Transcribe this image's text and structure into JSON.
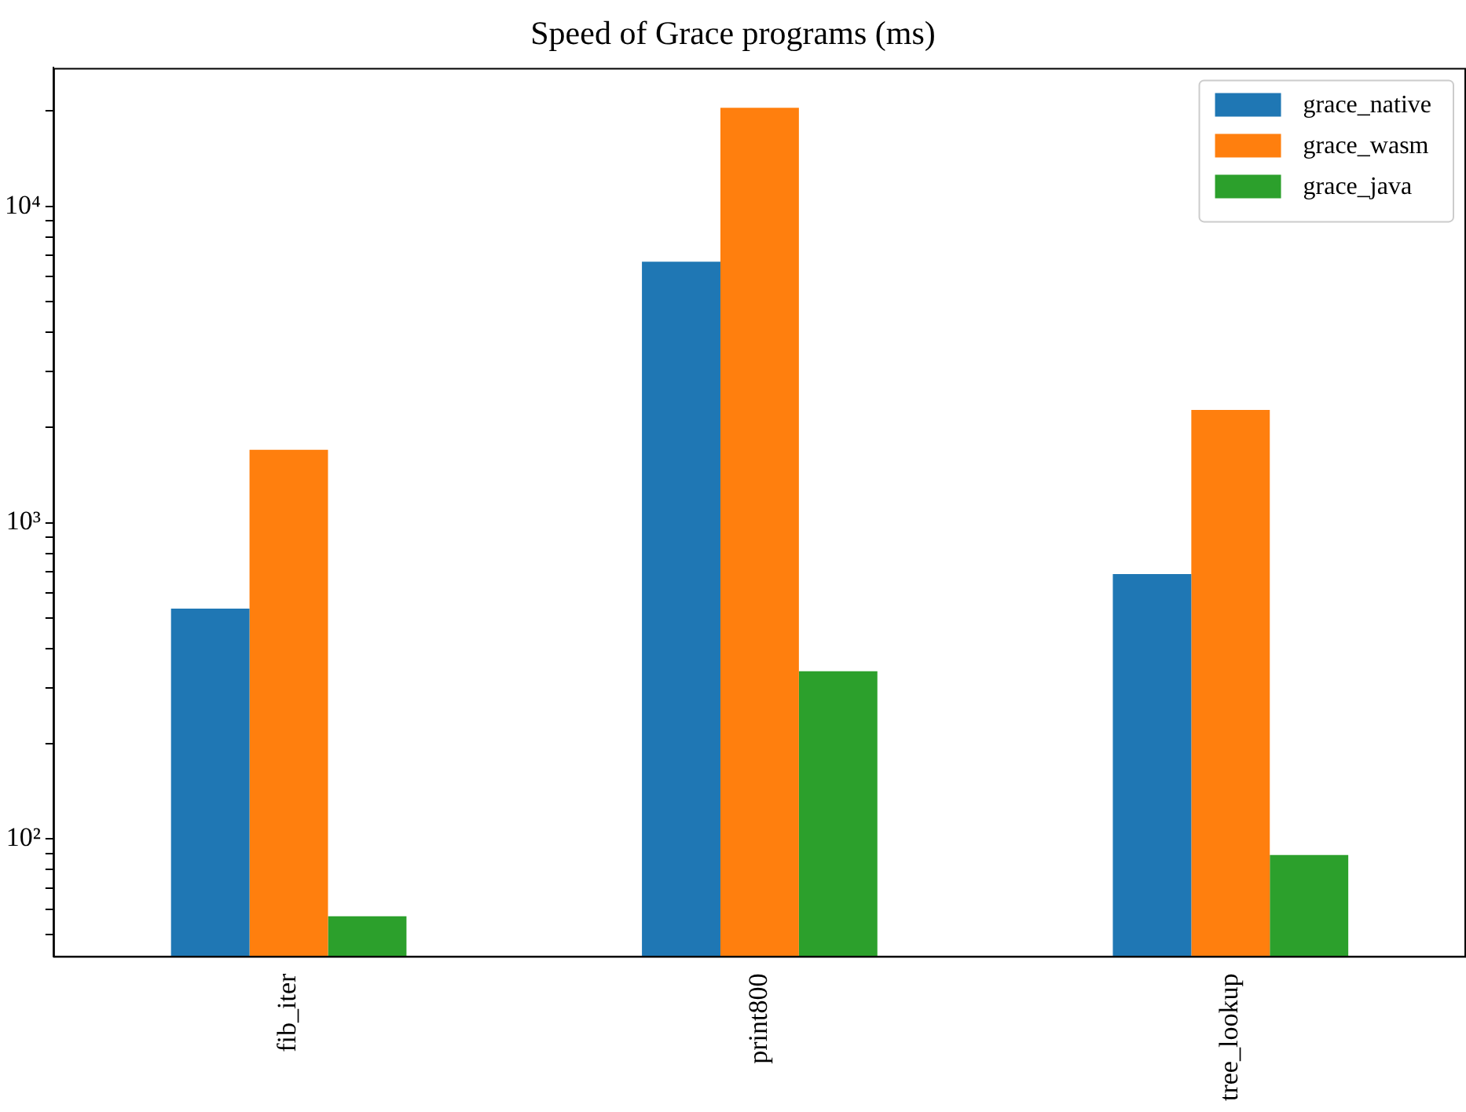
{
  "chart_data": {
    "type": "bar",
    "title": "Speed of Grace programs (ms)",
    "categories": [
      "fib_iter",
      "print800",
      "tree_lookup"
    ],
    "series": [
      {
        "name": "grace_native",
        "color": "#1f77b4",
        "values": [
          535,
          6680,
          688
        ]
      },
      {
        "name": "grace_wasm",
        "color": "#ff7f0e",
        "values": [
          1700,
          20500,
          2270
        ]
      },
      {
        "name": "grace_java",
        "color": "#2ca02c",
        "values": [
          57,
          339,
          89
        ]
      }
    ],
    "log": "y",
    "ylim": [
      42.6,
      27400
    ],
    "yticks": [
      {
        "value": 50,
        "label": null
      },
      {
        "value": 60,
        "label": null
      },
      {
        "value": 70,
        "label": null
      },
      {
        "value": 80,
        "label": null
      },
      {
        "value": 90,
        "label": null
      },
      {
        "value": 100,
        "label": "10²"
      },
      {
        "value": 200,
        "label": null
      },
      {
        "value": 300,
        "label": null
      },
      {
        "value": 400,
        "label": null
      },
      {
        "value": 500,
        "label": null
      },
      {
        "value": 600,
        "label": null
      },
      {
        "value": 700,
        "label": null
      },
      {
        "value": 800,
        "label": null
      },
      {
        "value": 900,
        "label": null
      },
      {
        "value": 1000,
        "label": "10³"
      },
      {
        "value": 2000,
        "label": null
      },
      {
        "value": 3000,
        "label": null
      },
      {
        "value": 4000,
        "label": null
      },
      {
        "value": 5000,
        "label": null
      },
      {
        "value": 6000,
        "label": null
      },
      {
        "value": 7000,
        "label": null
      },
      {
        "value": 8000,
        "label": null
      },
      {
        "value": 9000,
        "label": null
      },
      {
        "value": 10000,
        "label": "10⁴"
      },
      {
        "value": 20000,
        "label": null
      }
    ],
    "legend": "top right"
  }
}
